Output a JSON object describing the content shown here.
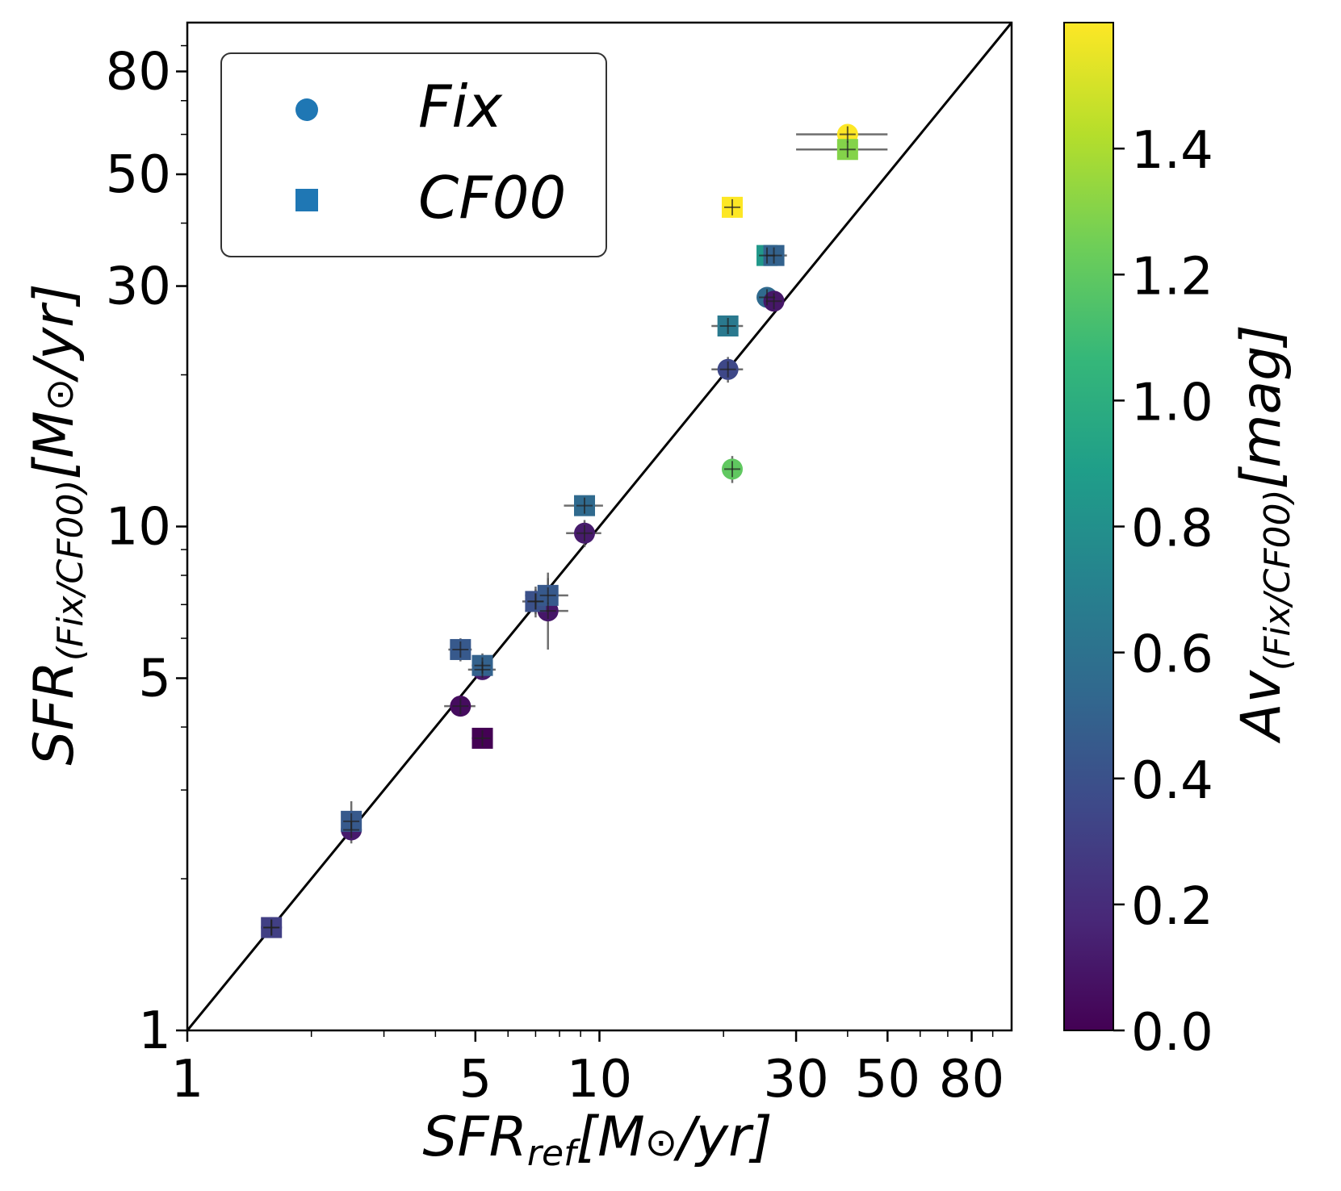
{
  "chart_data": {
    "type": "scatter",
    "x_scale": "log",
    "y_scale": "log",
    "xlim": [
      1,
      100
    ],
    "ylim": [
      1,
      100
    ],
    "xticks": [
      {
        "value": 1,
        "label": "1"
      },
      {
        "value": 5,
        "label": "5"
      },
      {
        "value": 10,
        "label": "10"
      },
      {
        "value": 30,
        "label": "30"
      },
      {
        "value": 50,
        "label": "50"
      },
      {
        "value": 80,
        "label": "80"
      }
    ],
    "yticks": [
      {
        "value": 1,
        "label": "1"
      },
      {
        "value": 5,
        "label": "5"
      },
      {
        "value": 10,
        "label": "10"
      },
      {
        "value": 30,
        "label": "30"
      },
      {
        "value": 50,
        "label": "50"
      },
      {
        "value": 80,
        "label": "80"
      }
    ],
    "xlabel": {
      "main": "SFR",
      "sub": "ref",
      "unit_prefix": "[M",
      "unit_sym": "⊙",
      "unit_suffix": "/yr]"
    },
    "ylabel": {
      "main": "SFR",
      "sub": "(Fix/CF00)",
      "unit_prefix": "[M",
      "unit_sym": "⊙",
      "unit_suffix": "/yr]"
    },
    "one_to_one_line": true,
    "legend": {
      "position": "top-left",
      "entries": [
        {
          "marker": "circle",
          "label": "Fix",
          "color": "#1f77b4"
        },
        {
          "marker": "square",
          "label": "CF00",
          "color": "#1f77b4"
        }
      ]
    },
    "colorbar": {
      "label": {
        "main": "Av",
        "sub": "(Fix/CF00)",
        "unit": "[mag]"
      },
      "range": [
        0,
        1.6
      ],
      "ticks": [
        {
          "value": 0.0,
          "label": "0.0"
        },
        {
          "value": 0.2,
          "label": "0.2"
        },
        {
          "value": 0.4,
          "label": "0.4"
        },
        {
          "value": 0.6,
          "label": "0.6"
        },
        {
          "value": 0.8,
          "label": "0.8"
        },
        {
          "value": 1.0,
          "label": "1.0"
        },
        {
          "value": 1.2,
          "label": "1.2"
        },
        {
          "value": 1.4,
          "label": "1.4"
        }
      ],
      "colormap": "viridis",
      "colormap_stops": [
        "#440154",
        "#482878",
        "#3e4989",
        "#31688e",
        "#26828e",
        "#1f9e89",
        "#35b779",
        "#6ece58",
        "#b5de2b",
        "#fde725"
      ]
    },
    "series": [
      {
        "name": "Fix",
        "marker": "circle",
        "points": [
          {
            "x": 1.6,
            "y": 1.6,
            "av": 0.2,
            "xerr": 0.05,
            "yerr": 0.05
          },
          {
            "x": 2.5,
            "y": 2.5,
            "av": 0.12,
            "xerr": 0.08,
            "yerr": 0.08
          },
          {
            "x": 4.6,
            "y": 4.4,
            "av": 0.05,
            "xerr": 0.4,
            "yerr": 0.15
          },
          {
            "x": 5.2,
            "y": 5.2,
            "av": 0.12,
            "xerr": 0.4,
            "yerr": 0.2
          },
          {
            "x": 7.5,
            "y": 6.8,
            "av": 0.1,
            "xerr": 0.9,
            "yerr": 1.1
          },
          {
            "x": 7.0,
            "y": 7.1,
            "av": 0.22,
            "xerr": 0.4,
            "yerr": 0.4
          },
          {
            "x": 9.2,
            "y": 9.7,
            "av": 0.12,
            "xerr": 0.9,
            "yerr": 0.6
          },
          {
            "x": 20.5,
            "y": 20.5,
            "av": 0.35,
            "xerr": 1.8,
            "yerr": 1.2
          },
          {
            "x": 21.0,
            "y": 13.0,
            "av": 1.2,
            "xerr": 0.8,
            "yerr": 0.8
          },
          {
            "x": 25.5,
            "y": 28.5,
            "av": 0.55,
            "xerr": 0.8,
            "yerr": 0.8
          },
          {
            "x": 26.5,
            "y": 28.0,
            "av": 0.1,
            "xerr": 1.0,
            "yerr": 1.0
          },
          {
            "x": 40.0,
            "y": 60.0,
            "av": 1.6,
            "xerr": 10.0,
            "yerr": 2.0
          }
        ]
      },
      {
        "name": "CF00",
        "marker": "square",
        "points": [
          {
            "x": 1.6,
            "y": 1.6,
            "av": 0.3,
            "xerr": 0.05,
            "yerr": 0.05
          },
          {
            "x": 2.5,
            "y": 2.6,
            "av": 0.45,
            "xerr": 0.08,
            "yerr": 0.25
          },
          {
            "x": 4.6,
            "y": 5.7,
            "av": 0.45,
            "xerr": 0.3,
            "yerr": 0.3
          },
          {
            "x": 5.2,
            "y": 5.3,
            "av": 0.5,
            "xerr": 0.3,
            "yerr": 0.3
          },
          {
            "x": 5.2,
            "y": 3.8,
            "av": 0.0,
            "xerr": 0.3,
            "yerr": 0.15
          },
          {
            "x": 7.0,
            "y": 7.1,
            "av": 0.4,
            "xerr": 0.5,
            "yerr": 0.5
          },
          {
            "x": 7.5,
            "y": 7.3,
            "av": 0.45,
            "xerr": 0.9,
            "yerr": 0.8
          },
          {
            "x": 9.2,
            "y": 11.0,
            "av": 0.55,
            "xerr": 1.0,
            "yerr": 0.5
          },
          {
            "x": 20.5,
            "y": 25.0,
            "av": 0.65,
            "xerr": 1.8,
            "yerr": 1.0
          },
          {
            "x": 21.0,
            "y": 43.0,
            "av": 1.6,
            "xerr": 0.8,
            "yerr": 2.0
          },
          {
            "x": 25.5,
            "y": 34.5,
            "av": 0.85,
            "xerr": 0.8,
            "yerr": 1.0
          },
          {
            "x": 26.5,
            "y": 34.5,
            "av": 0.5,
            "xerr": 2.0,
            "yerr": 1.0
          },
          {
            "x": 40.0,
            "y": 56.0,
            "av": 1.3,
            "xerr": 10.0,
            "yerr": 2.0
          }
        ]
      }
    ]
  }
}
